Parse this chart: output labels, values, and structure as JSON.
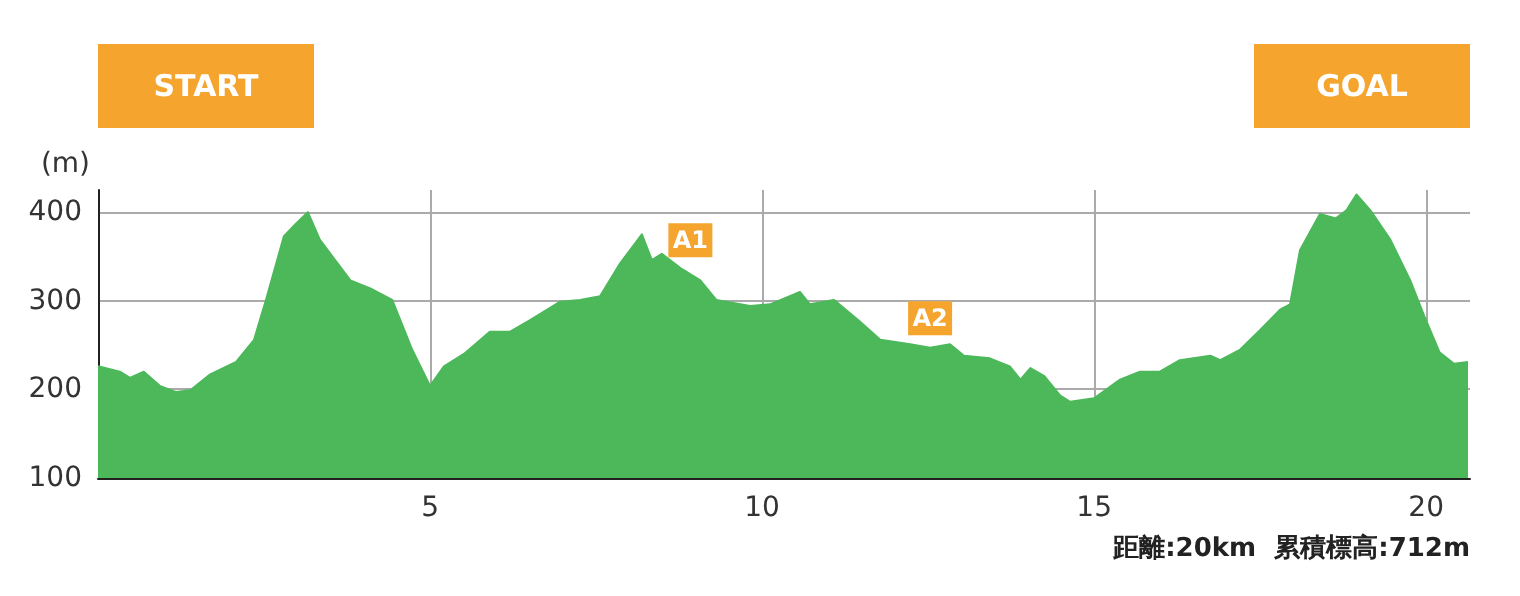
{
  "chart_data": {
    "type": "area",
    "ylabel": "(m)",
    "x": [
      0,
      0.33,
      0.48,
      0.69,
      0.93,
      1.17,
      1.39,
      1.69,
      2.08,
      2.35,
      2.53,
      2.8,
      2.98,
      3.16,
      3.34,
      3.52,
      3.8,
      4.1,
      4.43,
      4.73,
      5.0,
      5.21,
      5.51,
      5.9,
      6.2,
      6.5,
      6.96,
      7.26,
      7.56,
      7.86,
      8.19,
      8.34,
      8.49,
      8.77,
      9.07,
      9.31,
      9.82,
      10.12,
      10.57,
      10.72,
      11.08,
      11.45,
      11.78,
      12.23,
      12.53,
      12.83,
      13.04,
      13.43,
      13.73,
      13.89,
      14.04,
      14.25,
      14.49,
      14.64,
      15.0,
      15.39,
      15.69,
      15.99,
      16.29,
      16.75,
      16.9,
      17.2,
      17.5,
      17.8,
      17.95,
      18.1,
      18.4,
      18.64,
      18.8,
      18.95,
      19.16,
      19.46,
      19.76,
      19.97,
      20.2,
      20.42,
      20.63
    ],
    "series": [
      {
        "color": "#4cb85a",
        "values": [
          226,
          220,
          213,
          220,
          204,
          197,
          199,
          217,
          231,
          256,
          301,
          373,
          387,
          400,
          369,
          351,
          323,
          314,
          301,
          245,
          204,
          226,
          240,
          265,
          265,
          278,
          299,
          301,
          305,
          342,
          375,
          346,
          353,
          337,
          323,
          301,
          294,
          296,
          310,
          296,
          301,
          278,
          256,
          251,
          247,
          251,
          238,
          235,
          226,
          211,
          224,
          215,
          193,
          186,
          190,
          211,
          220,
          220,
          233,
          238,
          233,
          245,
          267,
          290,
          296,
          357,
          398,
          393,
          402,
          420,
          402,
          369,
          323,
          283,
          242,
          229,
          231
        ]
      }
    ],
    "xlim": [
      0,
      20.66
    ],
    "xticks": [
      5,
      10,
      15,
      20
    ],
    "ylim": [
      100,
      425
    ],
    "yticks": [
      100,
      200,
      300,
      400
    ],
    "grid": true,
    "annotations": [
      "START",
      "GOAL",
      "距離:20km  累積標高:712m",
      {
        "text": "A1",
        "x": 8.92,
        "y": 339
      },
      {
        "text": "A2",
        "x": 12.53,
        "y": 251
      }
    ]
  }
}
